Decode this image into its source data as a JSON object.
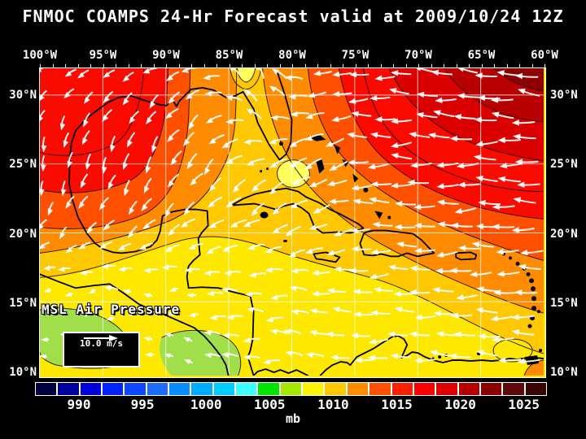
{
  "title": "FNMOC COAMPS 24-Hr Forecast valid at 2009/10/24 12Z",
  "map": {
    "overlay_label": "MSL Air Pressure",
    "wind_legend": {
      "speed_label": "10.0 m/s"
    },
    "lon_labels": [
      "100°W",
      "95°W",
      "90°W",
      "85°W",
      "80°W",
      "75°W",
      "70°W",
      "65°W",
      "60°W"
    ],
    "lat_labels_left": [
      "30°N",
      "25°N",
      "20°N",
      "15°N",
      "10°N"
    ],
    "lat_labels_right": [
      "30°N",
      "25°N",
      "20°N",
      "15°N",
      "10°N"
    ]
  },
  "colorbar": {
    "unit": "mb",
    "tick_labels": [
      "990",
      "995",
      "1000",
      "1005",
      "1010",
      "1015",
      "1020",
      "1025"
    ],
    "colors": [
      "#000040",
      "#00009E",
      "#0000D8",
      "#0023FF",
      "#0D47FF",
      "#1E6BFF",
      "#0A8CFF",
      "#00AAFF",
      "#00CCFF",
      "#3DFFFF",
      "#00E400",
      "#A4E800",
      "#FFF400",
      "#FFC800",
      "#FF8C00",
      "#FF5000",
      "#FF1E00",
      "#FA0000",
      "#DC0000",
      "#B40000",
      "#8B0000",
      "#5E0A0A",
      "#380404"
    ]
  }
}
